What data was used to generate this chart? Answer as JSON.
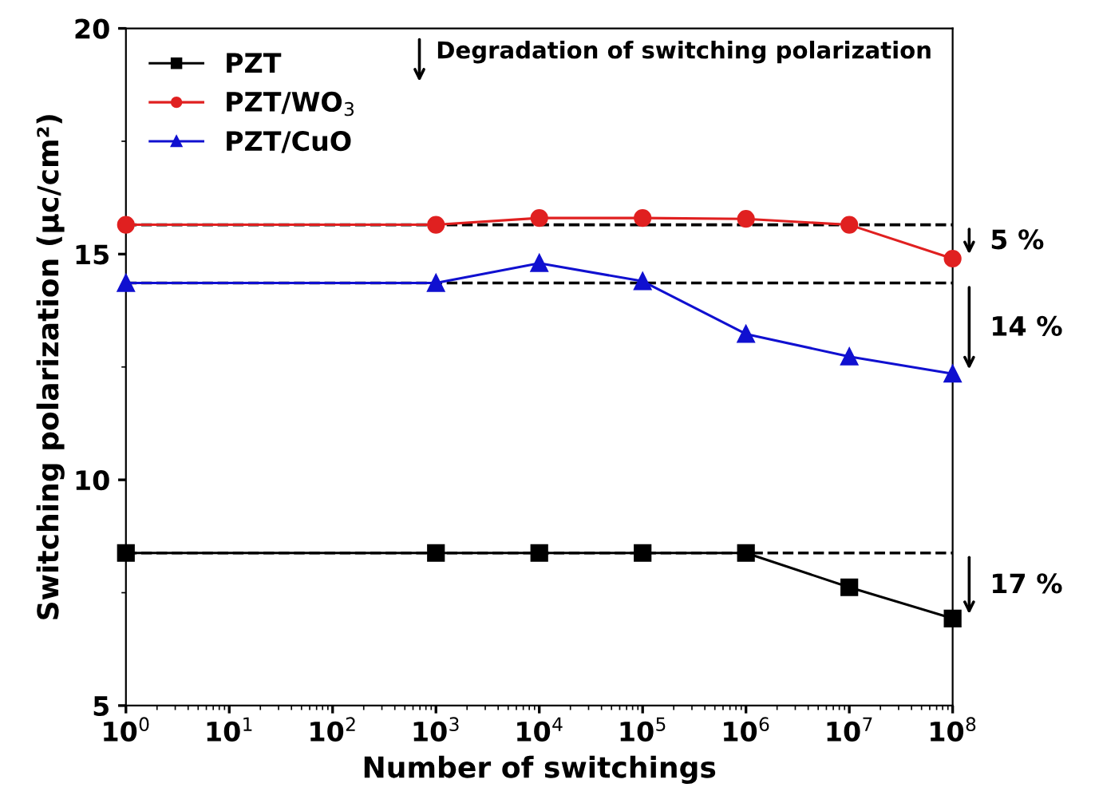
{
  "chart_data": {
    "type": "line",
    "xlabel": "Number of switchings",
    "ylabel": "Switching polarization (μc/cm²)",
    "x": [
      1,
      1000,
      10000,
      100000,
      1000000,
      10000000,
      100000000
    ],
    "log": "x",
    "xlim": [
      1,
      100000000
    ],
    "xticks": [
      {
        "value": 1,
        "label": "10$^{0}$"
      },
      {
        "value": 10,
        "label": "10$^{1}$"
      },
      {
        "value": 100,
        "label": "10$^{2}$"
      },
      {
        "value": 1000,
        "label": "10$^{3}$"
      },
      {
        "value": 10000,
        "label": "10$^{4}$"
      },
      {
        "value": 100000,
        "label": "10$^{5}$"
      },
      {
        "value": 1000000,
        "label": "10$^{6}$"
      },
      {
        "value": 10000000,
        "label": "10$^{7}$"
      },
      {
        "value": 100000000,
        "label": "10$^{8}$"
      }
    ],
    "ylim": [
      5,
      20
    ],
    "yticks": [
      5,
      10,
      15,
      20
    ],
    "series": [
      {
        "name": "PZT",
        "color": "#000000",
        "marker": "square",
        "values": [
          8.38,
          8.38,
          8.38,
          8.38,
          8.38,
          7.62,
          6.93
        ]
      },
      {
        "name": "PZT/WO$_{3}$",
        "color": "#e02020",
        "marker": "circle",
        "values": [
          15.65,
          15.65,
          15.8,
          15.8,
          15.78,
          15.65,
          14.9
        ]
      },
      {
        "name": "PZT/CuO",
        "color": "#1010d0",
        "marker": "triangle",
        "values": [
          14.36,
          14.36,
          14.8,
          14.4,
          13.23,
          12.73,
          12.35
        ]
      }
    ],
    "ref_lines": [
      {
        "axis": "y",
        "value": 8.38,
        "color": "#000000",
        "line_style": "dashed"
      },
      {
        "axis": "y",
        "value": 15.65,
        "color": "#000000",
        "line_style": "dashed"
      },
      {
        "axis": "y",
        "value": 14.36,
        "color": "#000000",
        "line_style": "dashed"
      }
    ],
    "annotations": [
      "Degradation of switching polarization",
      "17 %",
      "5 %",
      "14 %"
    ],
    "legend": "top left",
    "grid": false
  }
}
